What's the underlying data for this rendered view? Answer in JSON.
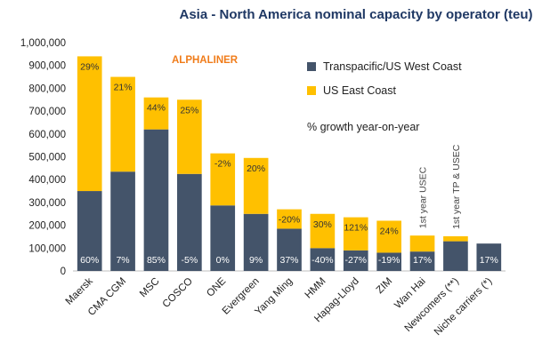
{
  "chart_data": {
    "type": "bar",
    "stacked": true,
    "title": "Asia - North America nominal capacity by operator (teu)",
    "watermark": "ALPHALINER",
    "categories": [
      "Maersk",
      "CMA CGM",
      "MSC",
      "COSCO",
      "ONE",
      "Evergreen",
      "Yang Ming",
      "HMM",
      "Hapag-Lloyd",
      "ZIM",
      "Wan Hai",
      "Newcomers (**)",
      "Niche carriers (*)"
    ],
    "series": [
      {
        "name": "Transpacific/US West Coast",
        "color": "#44546a",
        "values": [
          350000,
          435000,
          620000,
          425000,
          287000,
          250000,
          185000,
          100000,
          90000,
          80000,
          85000,
          130000,
          120000
        ],
        "growth_labels": [
          "60%",
          "7%",
          "85%",
          "-5%",
          "0%",
          "9%",
          "37%",
          "-40%",
          "-27%",
          "-19%",
          "17%",
          "",
          "17%"
        ]
      },
      {
        "name": "US East Coast",
        "color": "#ffc000",
        "values": [
          590000,
          415000,
          140000,
          325000,
          228000,
          245000,
          85000,
          150000,
          145000,
          140000,
          70000,
          22000,
          0
        ],
        "growth_labels": [
          "29%",
          "21%",
          "44%",
          "25%",
          "-2%",
          "20%",
          "-20%",
          "30%",
          "121%",
          "24%",
          "",
          "",
          ""
        ]
      }
    ],
    "legend_note": "% growth year-on-year",
    "annotations": [
      {
        "category": "Wan Hai",
        "text": "1st year USEC"
      },
      {
        "category": "Newcomers (**)",
        "text": "1st year TP & USEC"
      }
    ],
    "yticks": [
      "0",
      "100,000",
      "200,000",
      "300,000",
      "400,000",
      "500,000",
      "600,000",
      "700,000",
      "800,000",
      "900,000",
      "1,000,000"
    ],
    "ylim": [
      0,
      1000000
    ],
    "legend_position": "top-right",
    "grid": false
  }
}
